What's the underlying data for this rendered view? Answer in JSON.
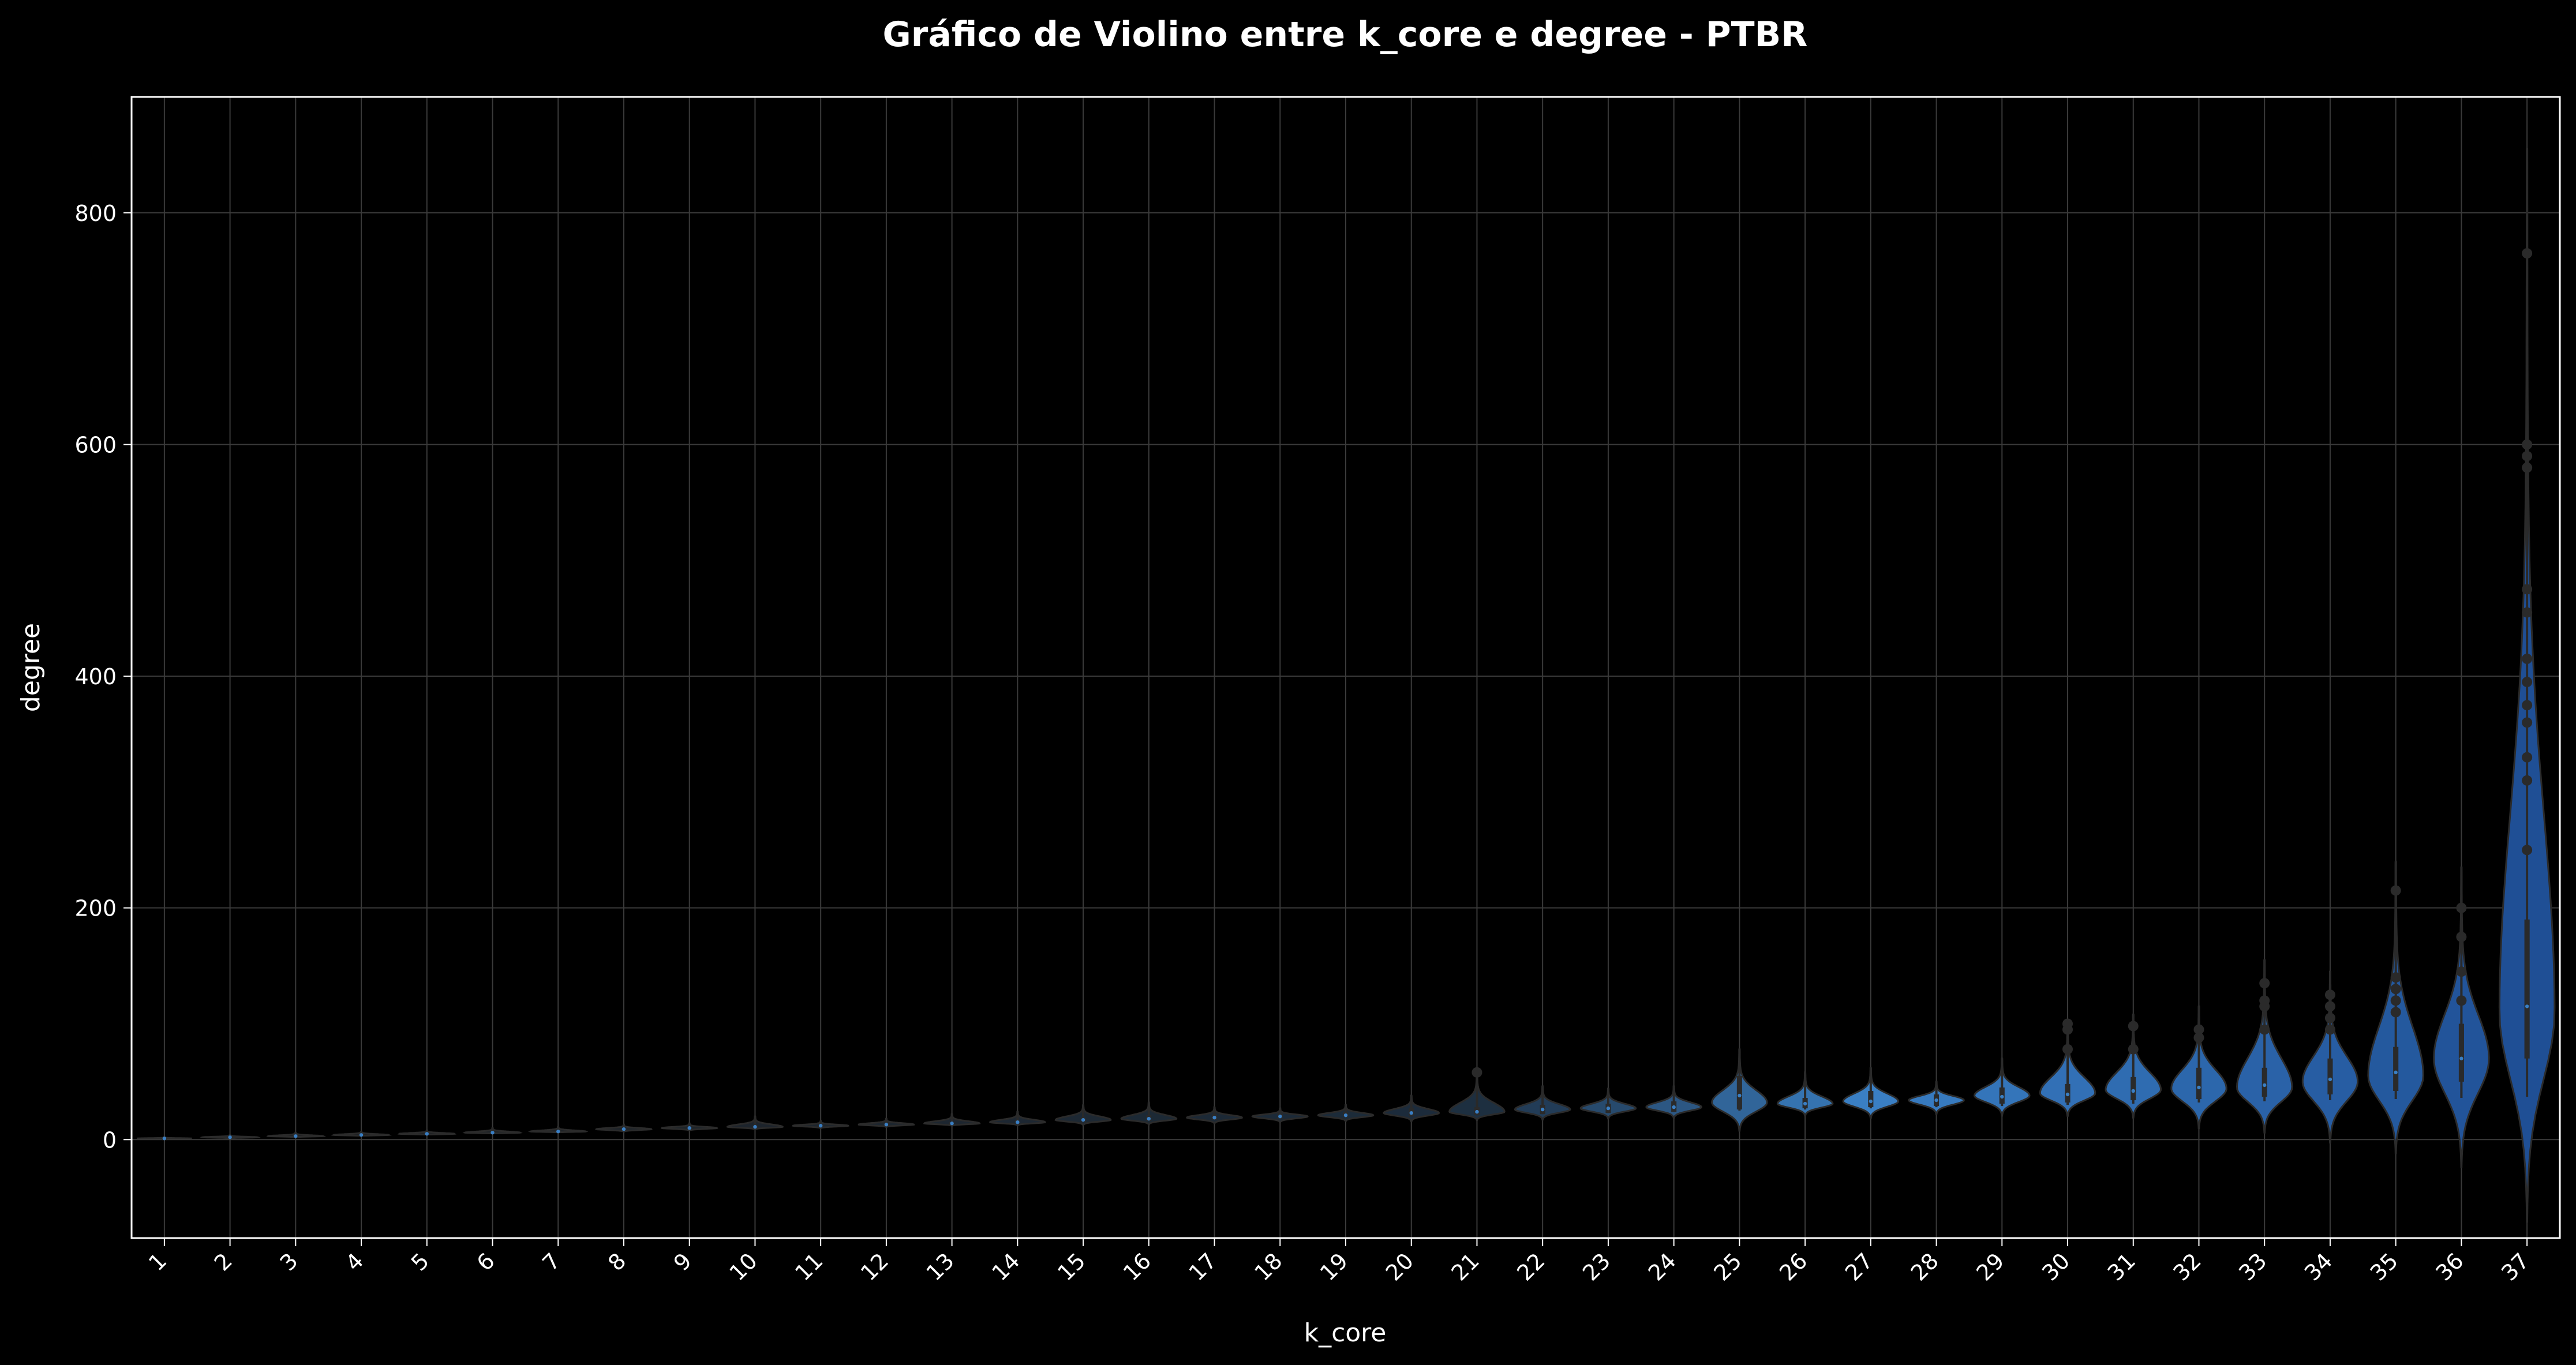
{
  "chart_data": {
    "type": "violin",
    "title": "Gráfico de Violino entre k_core e degree - PTBR",
    "xlabel": "k_core",
    "ylabel": "degree",
    "ylim": [
      -85,
      900
    ],
    "yticks": [
      0,
      200,
      400,
      600,
      800
    ],
    "grid": true,
    "categories": [
      "1",
      "2",
      "3",
      "4",
      "5",
      "6",
      "7",
      "8",
      "9",
      "10",
      "11",
      "12",
      "13",
      "14",
      "15",
      "16",
      "17",
      "18",
      "19",
      "20",
      "21",
      "22",
      "23",
      "24",
      "25",
      "26",
      "27",
      "28",
      "29",
      "30",
      "31",
      "32",
      "33",
      "34",
      "35",
      "36",
      "37"
    ],
    "series": [
      {
        "k_core": "1",
        "min": 1,
        "q1": 1,
        "median": 1,
        "q3": 1,
        "max": 2,
        "density_peak": 1
      },
      {
        "k_core": "2",
        "min": 2,
        "q1": 2,
        "median": 2,
        "q3": 3,
        "max": 4,
        "density_peak": 2
      },
      {
        "k_core": "3",
        "min": 3,
        "q1": 3,
        "median": 3,
        "q3": 4,
        "max": 6,
        "density_peak": 3
      },
      {
        "k_core": "4",
        "min": 4,
        "q1": 4,
        "median": 4,
        "q3": 5,
        "max": 7,
        "density_peak": 4
      },
      {
        "k_core": "5",
        "min": 5,
        "q1": 5,
        "median": 5,
        "q3": 6,
        "max": 8,
        "density_peak": 5
      },
      {
        "k_core": "6",
        "min": 6,
        "q1": 6,
        "median": 6,
        "q3": 7,
        "max": 10,
        "density_peak": 6
      },
      {
        "k_core": "7",
        "min": 7,
        "q1": 7,
        "median": 7,
        "q3": 8,
        "max": 11,
        "density_peak": 7
      },
      {
        "k_core": "8",
        "min": 8,
        "q1": 8,
        "median": 9,
        "q3": 10,
        "max": 13,
        "density_peak": 9
      },
      {
        "k_core": "9",
        "min": 9,
        "q1": 9,
        "median": 10,
        "q3": 11,
        "max": 14,
        "density_peak": 10
      },
      {
        "k_core": "10",
        "min": 10,
        "q1": 10,
        "median": 11,
        "q3": 12,
        "max": 20,
        "density_peak": 11
      },
      {
        "k_core": "11",
        "min": 11,
        "q1": 11,
        "median": 12,
        "q3": 13,
        "max": 16,
        "density_peak": 12
      },
      {
        "k_core": "12",
        "min": 12,
        "q1": 12,
        "median": 13,
        "q3": 14,
        "max": 18,
        "density_peak": 13
      },
      {
        "k_core": "13",
        "min": 13,
        "q1": 13,
        "median": 14,
        "q3": 15,
        "max": 22,
        "density_peak": 14
      },
      {
        "k_core": "14",
        "min": 14,
        "q1": 14,
        "median": 15,
        "q3": 17,
        "max": 24,
        "density_peak": 15
      },
      {
        "k_core": "15",
        "min": 15,
        "q1": 15,
        "median": 17,
        "q3": 19,
        "max": 30,
        "density_peak": 17
      },
      {
        "k_core": "16",
        "min": 16,
        "q1": 16,
        "median": 18,
        "q3": 21,
        "max": 32,
        "density_peak": 18
      },
      {
        "k_core": "17",
        "min": 17,
        "q1": 17,
        "median": 19,
        "q3": 22,
        "max": 28,
        "density_peak": 19
      },
      {
        "k_core": "18",
        "min": 18,
        "q1": 18,
        "median": 20,
        "q3": 23,
        "max": 27,
        "density_peak": 20
      },
      {
        "k_core": "19",
        "min": 19,
        "q1": 19,
        "median": 21,
        "q3": 24,
        "max": 30,
        "density_peak": 21
      },
      {
        "k_core": "20",
        "min": 20,
        "q1": 20,
        "median": 23,
        "q3": 27,
        "max": 38,
        "density_peak": 23
      },
      {
        "k_core": "21",
        "min": 21,
        "q1": 21,
        "median": 24,
        "q3": 28,
        "max": 58,
        "density_peak": 24
      },
      {
        "k_core": "22",
        "min": 22,
        "q1": 22,
        "median": 26,
        "q3": 30,
        "max": 46,
        "density_peak": 26
      },
      {
        "k_core": "23",
        "min": 23,
        "q1": 23,
        "median": 27,
        "q3": 31,
        "max": 44,
        "density_peak": 27
      },
      {
        "k_core": "24",
        "min": 24,
        "q1": 24,
        "median": 28,
        "q3": 33,
        "max": 46,
        "density_peak": 28
      },
      {
        "k_core": "25",
        "min": 25,
        "q1": 26,
        "median": 38,
        "q3": 55,
        "max": 78,
        "density_peak": 32
      },
      {
        "k_core": "26",
        "min": 26,
        "q1": 27,
        "median": 31,
        "q3": 36,
        "max": 58,
        "density_peak": 31
      },
      {
        "k_core": "27",
        "min": 27,
        "q1": 28,
        "median": 33,
        "q3": 42,
        "max": 62,
        "density_peak": 33
      },
      {
        "k_core": "28",
        "min": 28,
        "q1": 29,
        "median": 34,
        "q3": 39,
        "max": 50,
        "density_peak": 34
      },
      {
        "k_core": "29",
        "min": 29,
        "q1": 31,
        "median": 37,
        "q3": 45,
        "max": 70,
        "density_peak": 38
      },
      {
        "k_core": "30",
        "min": 30,
        "q1": 32,
        "median": 39,
        "q3": 48,
        "max": 100,
        "density_peak": 40
      },
      {
        "k_core": "31",
        "min": 31,
        "q1": 34,
        "median": 42,
        "q3": 54,
        "max": 108,
        "density_peak": 43
      },
      {
        "k_core": "32",
        "min": 32,
        "q1": 35,
        "median": 45,
        "q3": 62,
        "max": 115,
        "density_peak": 44
      },
      {
        "k_core": "33",
        "min": 33,
        "q1": 37,
        "median": 47,
        "q3": 62,
        "max": 155,
        "density_peak": 45
      },
      {
        "k_core": "34",
        "min": 34,
        "q1": 39,
        "median": 52,
        "q3": 70,
        "max": 145,
        "density_peak": 50
      },
      {
        "k_core": "35",
        "min": 35,
        "q1": 42,
        "median": 58,
        "q3": 80,
        "max": 240,
        "density_peak": 55
      },
      {
        "k_core": "36",
        "min": 36,
        "q1": 50,
        "median": 70,
        "q3": 100,
        "max": 235,
        "density_peak": 70
      },
      {
        "k_core": "37",
        "min": 37,
        "q1": 70,
        "median": 115,
        "q3": 190,
        "max": 855,
        "density_peak": 110
      }
    ],
    "outliers": {
      "21": [
        58
      ],
      "30": [
        78,
        95,
        100
      ],
      "31": [
        78,
        98
      ],
      "32": [
        88,
        95
      ],
      "33": [
        95,
        115,
        120,
        135
      ],
      "34": [
        95,
        105,
        115,
        125
      ],
      "35": [
        110,
        120,
        130,
        140,
        215
      ],
      "36": [
        120,
        145,
        175,
        200
      ],
      "37": [
        250,
        310,
        330,
        360,
        375,
        395,
        415,
        455,
        475,
        580,
        590,
        600,
        765
      ]
    },
    "colors": {
      "background": "#000000",
      "grid": "#3a3a3a",
      "axes": "#ffffff",
      "violin_low": "#1e1e1e",
      "violin_mid": "#3a7fc4",
      "violin_high": "#1f4f95",
      "box": "#2a2a2a"
    }
  }
}
